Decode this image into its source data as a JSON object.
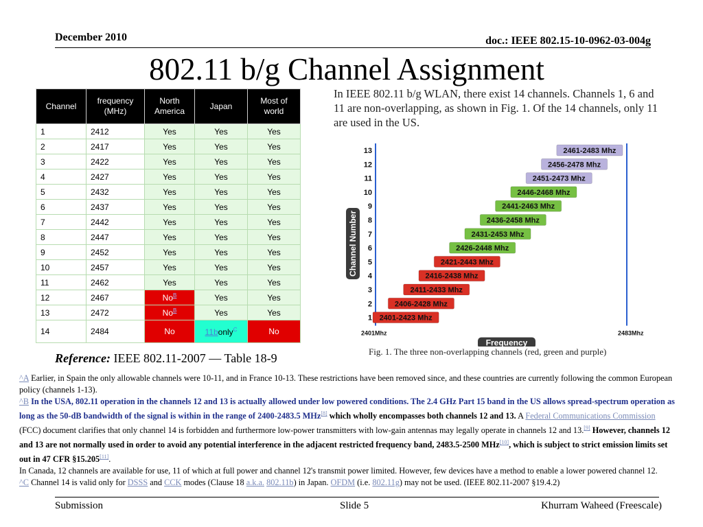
{
  "header": {
    "date": "December 2010",
    "doc": "doc.: IEEE 802.15-10-0962-03-004g"
  },
  "title": "802.11 b/g Channel Assignment",
  "table": {
    "headers": [
      "Channel",
      "frequency (MHz)",
      "North America",
      "Japan",
      "Most of world"
    ],
    "rows": [
      [
        "1",
        "2412",
        "Yes",
        "Yes",
        "Yes"
      ],
      [
        "2",
        "2417",
        "Yes",
        "Yes",
        "Yes"
      ],
      [
        "3",
        "2422",
        "Yes",
        "Yes",
        "Yes"
      ],
      [
        "4",
        "2427",
        "Yes",
        "Yes",
        "Yes"
      ],
      [
        "5",
        "2432",
        "Yes",
        "Yes",
        "Yes"
      ],
      [
        "6",
        "2437",
        "Yes",
        "Yes",
        "Yes"
      ],
      [
        "7",
        "2442",
        "Yes",
        "Yes",
        "Yes"
      ],
      [
        "8",
        "2447",
        "Yes",
        "Yes",
        "Yes"
      ],
      [
        "9",
        "2452",
        "Yes",
        "Yes",
        "Yes"
      ],
      [
        "10",
        "2457",
        "Yes",
        "Yes",
        "Yes"
      ],
      [
        "11",
        "2462",
        "Yes",
        "Yes",
        "Yes"
      ],
      [
        "12",
        "2467",
        "No",
        "Yes",
        "Yes"
      ],
      [
        "13",
        "2472",
        "No",
        "Yes",
        "Yes"
      ],
      [
        "14",
        "2484",
        "No",
        "11b only",
        "No"
      ]
    ],
    "note_marker": "B",
    "japan_14_link": "11b",
    "japan_14_suffix": "only",
    "japan_14_marker": "C"
  },
  "reference": {
    "label": "Reference:",
    "text": "IEEE 802.11-2007 — Table 18-9"
  },
  "intro": "In IEEE 802.11 b/g WLAN, there exist 14 channels. Channels 1, 6 and 11 are non-overlapping, as shown in Fig. 1.  Of the 14 channels, only 11 are used in the US.",
  "chart_data": {
    "type": "bar",
    "title": "",
    "ylabel": "Channel Number",
    "xlabel": "Frequency",
    "x_range_labels": [
      "2401Mhz",
      "2483Mhz"
    ],
    "xlim": [
      2401,
      2483
    ],
    "categories": [
      "1",
      "2",
      "3",
      "4",
      "5",
      "6",
      "7",
      "8",
      "9",
      "10",
      "11",
      "12",
      "13"
    ],
    "bars": [
      {
        "channel": 1,
        "start": 2401,
        "end": 2423,
        "label": "2401-2423 Mhz",
        "color": "#d93025"
      },
      {
        "channel": 2,
        "start": 2406,
        "end": 2428,
        "label": "2406-2428 Mhz",
        "color": "#d93025"
      },
      {
        "channel": 3,
        "start": 2411,
        "end": 2433,
        "label": "2411-2433 Mhz",
        "color": "#d93025"
      },
      {
        "channel": 4,
        "start": 2416,
        "end": 2438,
        "label": "2416-2438 Mhz",
        "color": "#d93025"
      },
      {
        "channel": 5,
        "start": 2421,
        "end": 2443,
        "label": "2421-2443 Mhz",
        "color": "#d93025"
      },
      {
        "channel": 6,
        "start": 2426,
        "end": 2448,
        "label": "2426-2448 Mhz",
        "color": "#76c043"
      },
      {
        "channel": 7,
        "start": 2431,
        "end": 2453,
        "label": "2431-2453 Mhz",
        "color": "#76c043"
      },
      {
        "channel": 8,
        "start": 2436,
        "end": 2458,
        "label": "2436-2458 Mhz",
        "color": "#76c043"
      },
      {
        "channel": 9,
        "start": 2441,
        "end": 2463,
        "label": "2441-2463 Mhz",
        "color": "#76c043"
      },
      {
        "channel": 10,
        "start": 2446,
        "end": 2468,
        "label": "2446-2468 Mhz",
        "color": "#76c043"
      },
      {
        "channel": 11,
        "start": 2451,
        "end": 2473,
        "label": "2451-2473 Mhz",
        "color": "#b9b2dd"
      },
      {
        "channel": 12,
        "start": 2456,
        "end": 2478,
        "label": "2456-2478 Mhz",
        "color": "#b9b2dd"
      },
      {
        "channel": 13,
        "start": 2461,
        "end": 2483,
        "label": "2461-2483 Mhz",
        "color": "#b9b2dd"
      }
    ]
  },
  "caption": "Fig. 1.  The three non-overlapping channels (red, green and purple)",
  "notes": {
    "a_marker": "^A",
    "a_text": "Earlier, in Spain the only allowable channels were 10-11, and in France 10-13. These restrictions have been removed since, and these countries are currently following the common European policy (channels 1-13).",
    "b_marker": "^B",
    "b_bold": "In the USA, 802.11 operation in the channels 12 and 13 is actually allowed under low powered conditions. The 2.4 GHz Part 15 band in the US allows spread-spectrum operation as long as the 50-dB bandwidth of the signal is within in the range of 2400-2483.5 MHz",
    "b_cite1": "[8]",
    "b_bold2": "which wholly encompasses both channels 12 and 13.",
    "b_text1": "A",
    "b_link": "Federal Communications Commission",
    "b_text2": "(FCC) document clarifies that only channel 14 is forbidden and furthermore low-power transmitters with low-gain antennas may legally operate in channels 12 and 13.",
    "b_cite2": "[9]",
    "b_bold3": "However, channels 12 and 13 are not normally used in order to avoid any potential interference in the adjacent restricted frequency band, 2483.5-2500 MHz",
    "b_cite3": "[10]",
    "b_bold4": ", which is subject to strict emission limits set out in 47 CFR §15.205",
    "b_cite4": "[11]",
    "b_end": ".",
    "canada": "In Canada, 12 channels are available for use, 11 of which at full power and channel 12's transmit power limited. However, few devices have a method to enable a lower powered channel 12.",
    "c_marker": "^C",
    "c_text1": "Channel 14 is valid only for",
    "c_link1": "DSSS",
    "c_and": "and",
    "c_link2": "CCK",
    "c_text2": "modes (Clause 18",
    "c_link3": "a.k.a.",
    "c_link4": "802.11b",
    "c_text3": ") in Japan.",
    "c_link5": "OFDM",
    "c_text4": "(i.e.",
    "c_link6": "802.11g",
    "c_text5": ") may not be used. (IEEE 802.11-2007 §19.4.2)"
  },
  "footer": {
    "left": "Submission",
    "mid": "Slide 5",
    "right": "Khurram Waheed (Freescale)"
  }
}
